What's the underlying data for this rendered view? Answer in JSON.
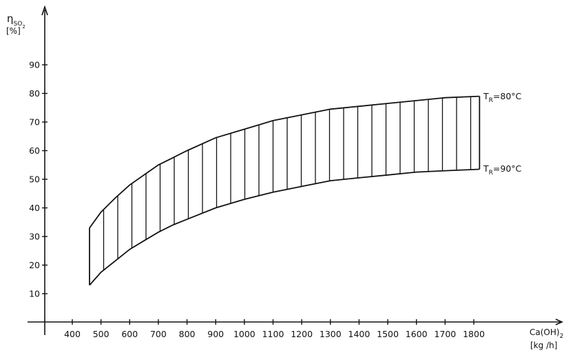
{
  "chart_data": {
    "type": "area",
    "x_axis": {
      "label_main": "Ca(OH)",
      "label_sub": "2",
      "unit": "[kg /h]",
      "ticks": [
        400,
        500,
        600,
        700,
        800,
        900,
        1000,
        1100,
        1200,
        1300,
        1400,
        1500,
        1600,
        1700,
        1800
      ],
      "range": [
        360,
        1850
      ]
    },
    "y_axis": {
      "label_main": "η",
      "label_sub": "SO",
      "label_subsub": "2",
      "unit": "[%]",
      "ticks": [
        10,
        20,
        30,
        40,
        50,
        60,
        70,
        80,
        90
      ],
      "range": [
        0,
        100
      ]
    },
    "series": [
      {
        "name_main": "T",
        "name_sub": "R",
        "name_rest": "=80°C",
        "x": [
          460,
          500,
          550,
          600,
          650,
          700,
          750,
          800,
          900,
          1000,
          1100,
          1200,
          1300,
          1400,
          1500,
          1600,
          1700,
          1820
        ],
        "y": [
          33,
          38.5,
          43.5,
          48,
          51.5,
          55,
          57.5,
          60,
          64.5,
          67.5,
          70.5,
          72.5,
          74.5,
          75.5,
          76.5,
          77.5,
          78.5,
          79
        ]
      },
      {
        "name_main": "T",
        "name_sub": "R",
        "name_rest": "=90°C",
        "x": [
          460,
          500,
          550,
          600,
          650,
          700,
          750,
          800,
          900,
          1000,
          1100,
          1200,
          1300,
          1400,
          1500,
          1600,
          1700,
          1820
        ],
        "y": [
          13,
          17.5,
          21.5,
          25.5,
          28.5,
          31.5,
          34,
          36,
          40,
          43,
          45.5,
          47.5,
          49.5,
          50.5,
          51.5,
          52.5,
          53,
          53.5
        ]
      }
    ],
    "fill": "vertical-hatch"
  }
}
